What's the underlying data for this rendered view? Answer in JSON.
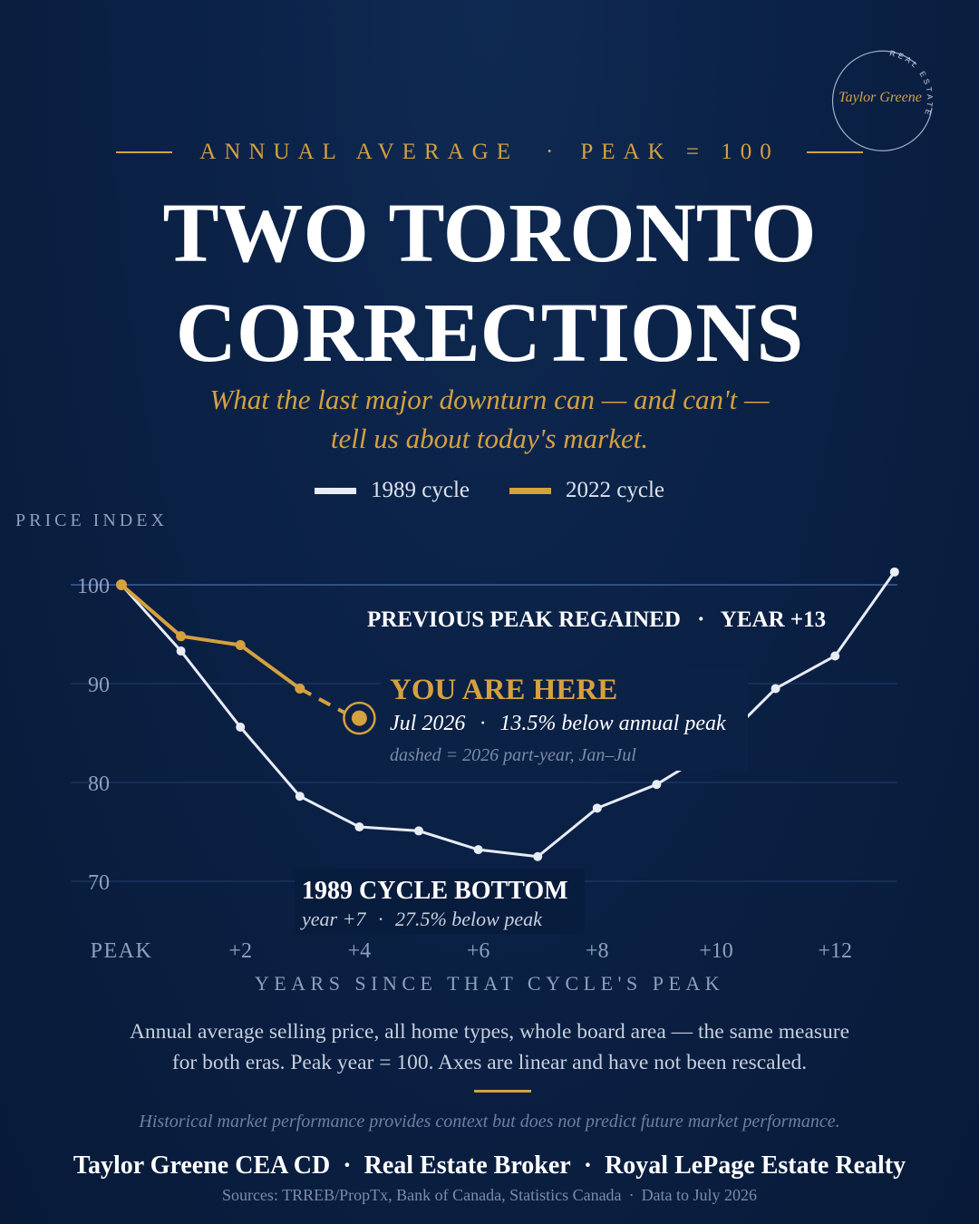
{
  "logo": {
    "name": "Taylor Greene",
    "ring_text": "REAL ESTATE"
  },
  "kicker": {
    "left": "ANNUAL AVERAGE",
    "separator": "·",
    "right": "PEAK = 100"
  },
  "title": {
    "line1": "TWO TORONTO",
    "line2": "CORRECTIONS"
  },
  "subtitle": {
    "line1": "What the last major downturn can — and can't —",
    "line2": "tell us about today's market."
  },
  "colors": {
    "background": "#0b2146",
    "series_1989": "#e8ecf4",
    "series_2022": "#d5a13f",
    "accent": "#d5a13f"
  },
  "chart_data": {
    "type": "line",
    "ylabel": "PRICE INDEX",
    "xlabel": "YEARS SINCE THAT CYCLE'S PEAK",
    "ylim": [
      70,
      100
    ],
    "xlim": [
      0,
      13
    ],
    "yticks": [
      100,
      90,
      80,
      70
    ],
    "xticks": [
      {
        "x": 0,
        "label": "PEAK"
      },
      {
        "x": 2,
        "label": "+2"
      },
      {
        "x": 4,
        "label": "+4"
      },
      {
        "x": 6,
        "label": "+6"
      },
      {
        "x": 8,
        "label": "+8"
      },
      {
        "x": 10,
        "label": "+10"
      },
      {
        "x": 12,
        "label": "+12"
      }
    ],
    "grid": true,
    "legend_position": "top-center",
    "series": [
      {
        "name": "1989 cycle",
        "color": "#e8ecf4",
        "points": [
          {
            "x": 0,
            "y": 100.0
          },
          {
            "x": 1,
            "y": 93.3
          },
          {
            "x": 2,
            "y": 85.6
          },
          {
            "x": 3,
            "y": 78.6
          },
          {
            "x": 4,
            "y": 75.5
          },
          {
            "x": 5,
            "y": 75.1
          },
          {
            "x": 6,
            "y": 73.2
          },
          {
            "x": 7,
            "y": 72.5
          },
          {
            "x": 8,
            "y": 77.4
          },
          {
            "x": 9,
            "y": 79.8
          },
          {
            "x": 10,
            "y": 83.5
          },
          {
            "x": 11,
            "y": 89.5
          },
          {
            "x": 12,
            "y": 92.8
          },
          {
            "x": 13,
            "y": 101.3
          }
        ]
      },
      {
        "name": "2022 cycle",
        "color": "#d5a13f",
        "points": [
          {
            "x": 0,
            "y": 100.0
          },
          {
            "x": 1,
            "y": 94.8
          },
          {
            "x": 2,
            "y": 93.9
          },
          {
            "x": 3,
            "y": 89.5
          },
          {
            "x": 4,
            "y": 86.5,
            "partial_year": true
          }
        ]
      }
    ],
    "annotations": {
      "peak_regained": {
        "label": "PREVIOUS PEAK REGAINED",
        "separator": "·",
        "detail": "YEAR +13"
      },
      "you_are_here": {
        "title": "YOU ARE HERE",
        "detail_date": "Jul 2026",
        "separator": "·",
        "detail_text": "13.5% below annual peak",
        "note": "dashed = 2026 part-year, Jan–Jul"
      },
      "bottom": {
        "title": "1989 CYCLE BOTTOM",
        "detail_year": "year +7",
        "separator": "·",
        "detail_text": "27.5% below peak"
      }
    }
  },
  "notes": {
    "line1": "Annual average selling price, all home types, whole board area — the same measure",
    "line2": "for both eras. Peak year = 100. Axes are linear and have not been rescaled."
  },
  "disclaimer": "Historical market performance provides context but does not predict future market performance.",
  "credits": {
    "name": "Taylor Greene CEA CD",
    "role": "Real Estate Broker",
    "brokerage": "Royal LePage Estate Realty",
    "separator": "·"
  },
  "sources": {
    "text": "Sources: TRREB/PropTx, Bank of Canada, Statistics Canada",
    "separator": "·",
    "data_to": "Data to July 2026"
  }
}
